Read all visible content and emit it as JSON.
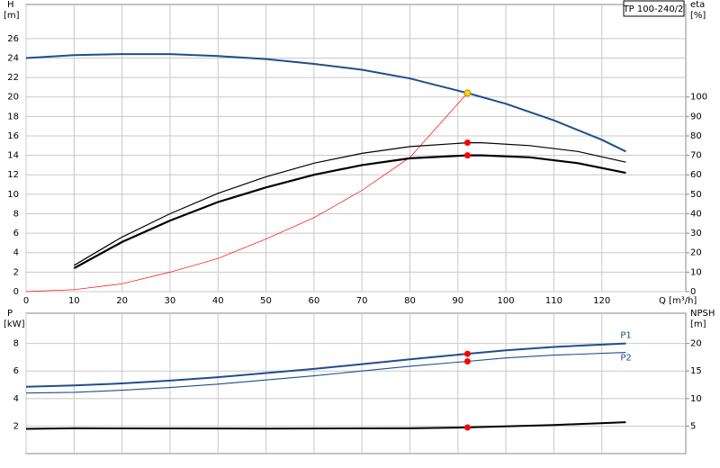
{
  "chart_data": [
    {
      "type": "line",
      "title": "TP 100-240/2",
      "ylabel": "H",
      "yunit": "[m]",
      "y2label": "eta",
      "y2unit": "[%]",
      "xlabel": "Q [m³/h]",
      "xlim": [
        0,
        137.5
      ],
      "ylim": [
        0,
        29.5
      ],
      "y2lim": [
        0,
        147.5
      ],
      "grid": true,
      "xticks": [
        0,
        10,
        20,
        30,
        40,
        50,
        60,
        70,
        80,
        90,
        100,
        110,
        120
      ],
      "yticks": [
        0,
        2,
        4,
        6,
        8,
        10,
        12,
        14,
        16,
        18,
        20,
        22,
        24,
        26
      ],
      "y2ticks": [
        0,
        10,
        20,
        30,
        40,
        50,
        60,
        70,
        80,
        90,
        100
      ],
      "series": [
        {
          "color": "#1f4e8c",
          "line_width": 2,
          "x": [
            0,
            10,
            20,
            30,
            40,
            50,
            60,
            70,
            80,
            92,
            100,
            110,
            120,
            125
          ],
          "values": [
            24,
            24.3,
            24.4,
            24.4,
            24.2,
            23.9,
            23.4,
            22.8,
            21.9,
            20.4,
            19.3,
            17.6,
            15.6,
            14.4
          ]
        },
        {
          "color": "#ff0000",
          "line_width": 0.7,
          "x": [
            0,
            10,
            20,
            30,
            40,
            50,
            60,
            70,
            80,
            92
          ],
          "values": [
            0,
            0.2,
            0.8,
            2,
            3.4,
            5.4,
            7.6,
            10.4,
            13.8,
            20.4
          ]
        },
        {
          "color": "#000000",
          "line_width": 1.2,
          "axis": "y2",
          "x": [
            10,
            20,
            30,
            40,
            50,
            60,
            70,
            80,
            92,
            95,
            105,
            115,
            125
          ],
          "values": [
            13.5,
            28,
            40,
            50.5,
            59,
            66,
            71,
            74.5,
            76.5,
            76.5,
            75,
            72,
            66.5
          ]
        },
        {
          "color": "#000000",
          "line_width": 2.2,
          "axis": "y2",
          "x": [
            10,
            20,
            30,
            40,
            50,
            60,
            70,
            80,
            92,
            95,
            105,
            115,
            125
          ],
          "values": [
            12,
            25.5,
            36.5,
            46,
            53.5,
            60,
            65,
            68.5,
            70,
            70,
            69,
            66,
            61
          ]
        },
        {
          "mode": "marker",
          "color": "#ffd700",
          "x": [
            92
          ],
          "values": [
            20.4
          ]
        },
        {
          "mode": "marker",
          "color": "#ff0000",
          "axis": "y2",
          "x": [
            92,
            92
          ],
          "values": [
            76.5,
            70
          ]
        }
      ]
    },
    {
      "type": "line",
      "ylabel": "P",
      "yunit": "[kW]",
      "y2label": "NPSH",
      "y2unit": "[m]",
      "xlim": [
        0,
        137.5
      ],
      "ylim": [
        0,
        10.2
      ],
      "y2lim": [
        0,
        25.5
      ],
      "grid": true,
      "xticks": [
        0,
        10,
        20,
        30,
        40,
        50,
        60,
        70,
        80,
        90,
        100,
        110,
        120
      ],
      "yticks": [
        2,
        4,
        6,
        8
      ],
      "y2ticks": [
        5,
        10,
        15,
        20
      ],
      "series": [
        {
          "name": "P1",
          "color": "#1f4e8c",
          "line_width": 2,
          "x": [
            0,
            10,
            20,
            30,
            40,
            50,
            60,
            70,
            80,
            92,
            100,
            110,
            125
          ],
          "values": [
            4.85,
            4.95,
            5.1,
            5.3,
            5.55,
            5.85,
            6.15,
            6.5,
            6.85,
            7.25,
            7.5,
            7.75,
            8.0
          ]
        },
        {
          "name": "P2",
          "color": "#1f4e8c",
          "line_width": 1.1,
          "x": [
            0,
            10,
            20,
            30,
            40,
            50,
            60,
            70,
            80,
            92,
            100,
            110,
            125
          ],
          "values": [
            4.4,
            4.45,
            4.6,
            4.8,
            5.05,
            5.35,
            5.65,
            6.0,
            6.35,
            6.7,
            6.95,
            7.15,
            7.35
          ]
        },
        {
          "color": "#000000",
          "line_width": 2,
          "axis": "y2",
          "x": [
            0,
            10,
            50,
            80,
            92,
            110,
            125
          ],
          "values": [
            4.5,
            4.6,
            4.55,
            4.6,
            4.75,
            5.2,
            5.7
          ]
        },
        {
          "mode": "marker",
          "color": "#ff0000",
          "x": [
            92,
            92
          ],
          "values": [
            7.25,
            6.7
          ]
        },
        {
          "mode": "marker",
          "color": "#ff0000",
          "axis": "y2",
          "x": [
            92
          ],
          "values": [
            4.75
          ]
        }
      ]
    }
  ]
}
